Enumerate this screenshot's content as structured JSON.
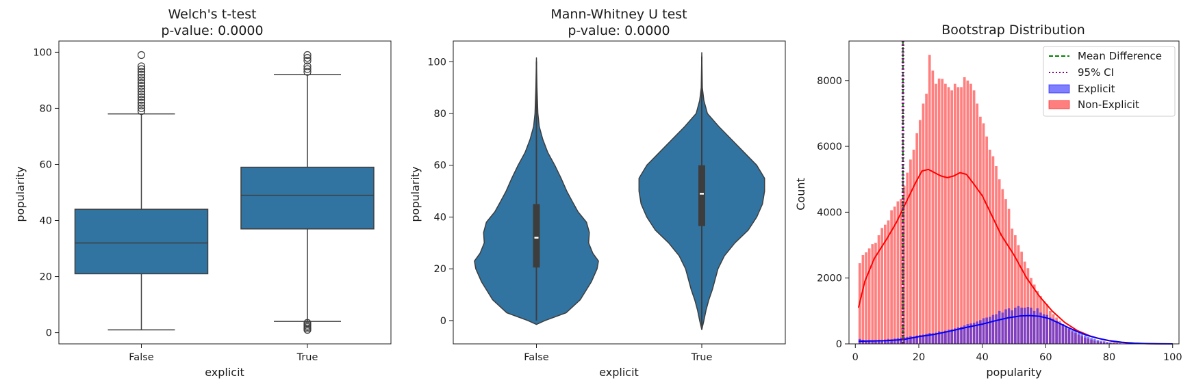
{
  "colors": {
    "box": "#3274a1",
    "edge": "#3d3d3d",
    "explicit": "#0000ff",
    "non_explicit": "#ff0000",
    "mean_line": "#008000",
    "ci_line": "#800080"
  },
  "chart_data": [
    {
      "type": "box",
      "title_lines": [
        "Welch's t-test",
        "p-value: 0.0000"
      ],
      "xlabel": "explicit",
      "ylabel": "popularity",
      "categories": [
        "False",
        "True"
      ],
      "ylim": [
        -4,
        104
      ],
      "yticks": [
        0,
        20,
        40,
        60,
        80,
        100
      ],
      "boxes": [
        {
          "category": "False",
          "min": 1,
          "q1": 21,
          "median": 32,
          "q3": 44,
          "max": 78,
          "outliers": [
            79,
            80,
            81,
            82,
            83,
            84,
            85,
            86,
            87,
            88,
            89,
            90,
            91,
            92,
            93,
            94,
            95,
            99
          ]
        },
        {
          "category": "True",
          "min": 4,
          "q1": 37,
          "median": 49,
          "q3": 59,
          "max": 92,
          "outliers": [
            1,
            1.5,
            2,
            2.5,
            3,
            3.5,
            93,
            94,
            95,
            97,
            98,
            99
          ]
        }
      ]
    },
    {
      "type": "violin",
      "title_lines": [
        "Mann-Whitney U test",
        "p-value: 0.0000"
      ],
      "xlabel": "explicit",
      "ylabel": "popularity",
      "categories": [
        "False",
        "True"
      ],
      "ylim": [
        -9,
        108
      ],
      "yticks": [
        0,
        20,
        40,
        60,
        80,
        100
      ],
      "violins": [
        {
          "category": "False",
          "ymin": -1.5,
          "ymax": 101.5,
          "q1": 20.5,
          "median": 32,
          "q3": 45,
          "profile": [
            [
              -1.5,
              0
            ],
            [
              0,
              0.12
            ],
            [
              3,
              0.42
            ],
            [
              8,
              0.62
            ],
            [
              15,
              0.78
            ],
            [
              20,
              0.86
            ],
            [
              23,
              0.88
            ],
            [
              26,
              0.8
            ],
            [
              30,
              0.74
            ],
            [
              34,
              0.75
            ],
            [
              38,
              0.71
            ],
            [
              42,
              0.59
            ],
            [
              46,
              0.51
            ],
            [
              50,
              0.43
            ],
            [
              55,
              0.35
            ],
            [
              60,
              0.26
            ],
            [
              65,
              0.16
            ],
            [
              70,
              0.09
            ],
            [
              75,
              0.04
            ],
            [
              80,
              0.02
            ],
            [
              90,
              0.008
            ],
            [
              101.5,
              0
            ]
          ]
        },
        {
          "category": "True",
          "ymin": -3.5,
          "ymax": 103.5,
          "q1": 36.5,
          "median": 49,
          "q3": 60,
          "profile": [
            [
              -3.5,
              0
            ],
            [
              0,
              0.03
            ],
            [
              4,
              0.06
            ],
            [
              8,
              0.1
            ],
            [
              12,
              0.15
            ],
            [
              16,
              0.19
            ],
            [
              20,
              0.23
            ],
            [
              25,
              0.32
            ],
            [
              30,
              0.47
            ],
            [
              35,
              0.66
            ],
            [
              40,
              0.78
            ],
            [
              45,
              0.86
            ],
            [
              50,
              0.89
            ],
            [
              55,
              0.89
            ],
            [
              60,
              0.78
            ],
            [
              65,
              0.6
            ],
            [
              70,
              0.42
            ],
            [
              75,
              0.24
            ],
            [
              80,
              0.08
            ],
            [
              85,
              0.03
            ],
            [
              90,
              0.008
            ],
            [
              103.5,
              0
            ]
          ]
        }
      ]
    },
    {
      "type": "histogram",
      "title": "Bootstrap Distribution",
      "xlabel": "popularity",
      "ylabel": "Count",
      "xlim": [
        -2,
        102
      ],
      "ylim": [
        0,
        9200
      ],
      "xticks": [
        0,
        20,
        40,
        60,
        80,
        100
      ],
      "yticks": [
        0,
        2000,
        4000,
        6000,
        8000
      ],
      "legend_position": "upper right",
      "vlines": [
        {
          "name": "Mean Difference",
          "x": 15.0,
          "style": "dashed"
        },
        {
          "name": "95% CI",
          "x": 14.8,
          "style": "dotted"
        },
        {
          "name": "95% CI",
          "x": 15.2,
          "style": "dotted"
        }
      ],
      "legend": [
        {
          "label": "Mean Difference",
          "kind": "dashed-line"
        },
        {
          "label": "95% CI",
          "kind": "dotted-line"
        },
        {
          "label": "Explicit",
          "kind": "patch-blue"
        },
        {
          "label": "Non-Explicit",
          "kind": "patch-red"
        }
      ],
      "bin_width": 1,
      "series": [
        {
          "name": "Non-Explicit",
          "bins_start": 1,
          "values": [
            2450,
            2700,
            2780,
            2900,
            3030,
            3070,
            3300,
            3520,
            3620,
            3750,
            4060,
            4170,
            4330,
            4400,
            4800,
            5200,
            5600,
            5900,
            6400,
            6800,
            7300,
            7600,
            8780,
            8300,
            7900,
            8060,
            8050,
            7900,
            7800,
            7700,
            7900,
            7800,
            7800,
            8100,
            8000,
            7900,
            7700,
            7300,
            6900,
            6700,
            6300,
            5900,
            5700,
            5400,
            5000,
            4700,
            4400,
            4100,
            3500,
            3300,
            3000,
            2800,
            2500,
            2300,
            2000,
            1800,
            1600,
            1450,
            1300,
            1200,
            1000,
            900,
            800,
            700,
            600,
            500,
            450,
            380,
            330,
            280,
            230,
            190,
            160,
            130,
            100,
            80,
            60,
            45,
            35,
            25,
            18,
            12,
            8,
            5,
            3,
            2,
            1,
            1,
            1,
            1,
            1,
            1,
            1,
            1,
            1,
            1,
            1,
            1,
            1
          ]
        },
        {
          "name": "Explicit",
          "bins_start": 1,
          "values": [
            150,
            120,
            100,
            110,
            90,
            100,
            120,
            110,
            130,
            150,
            140,
            160,
            170,
            190,
            200,
            210,
            230,
            220,
            250,
            270,
            280,
            300,
            330,
            320,
            340,
            380,
            360,
            400,
            430,
            440,
            470,
            500,
            520,
            560,
            600,
            620,
            640,
            680,
            720,
            780,
            800,
            820,
            880,
            900,
            1000,
            950,
            1050,
            1080,
            1020,
            1100,
            1150,
            1100,
            1100,
            1120,
            1100,
            1000,
            1080,
            950,
            900,
            880,
            800,
            760,
            700,
            640,
            600,
            520,
            480,
            420,
            380,
            330,
            290,
            250,
            210,
            180,
            150,
            120,
            95,
            80,
            60,
            45,
            35,
            25,
            18,
            12,
            8,
            5,
            3,
            2,
            1,
            1,
            1,
            1,
            1,
            1,
            1,
            1,
            1,
            1,
            1
          ]
        },
        {
          "name": "Non-Explicit KDE",
          "points": [
            [
              1,
              1100
            ],
            [
              3,
              1900
            ],
            [
              6,
              2600
            ],
            [
              10,
              3200
            ],
            [
              13,
              3700
            ],
            [
              16,
              4300
            ],
            [
              19,
              4900
            ],
            [
              21,
              5250
            ],
            [
              23,
              5300
            ],
            [
              25,
              5200
            ],
            [
              27,
              5100
            ],
            [
              29,
              5050
            ],
            [
              31,
              5100
            ],
            [
              33,
              5200
            ],
            [
              35,
              5150
            ],
            [
              37,
              4900
            ],
            [
              40,
              4500
            ],
            [
              43,
              3900
            ],
            [
              46,
              3300
            ],
            [
              50,
              2700
            ],
            [
              54,
              2000
            ],
            [
              58,
              1450
            ],
            [
              62,
              1000
            ],
            [
              66,
              650
            ],
            [
              70,
              400
            ],
            [
              74,
              240
            ],
            [
              78,
              130
            ],
            [
              82,
              60
            ],
            [
              86,
              25
            ],
            [
              90,
              10
            ],
            [
              95,
              3
            ],
            [
              100,
              0
            ]
          ]
        },
        {
          "name": "Explicit KDE",
          "points": [
            [
              1,
              80
            ],
            [
              5,
              90
            ],
            [
              10,
              100
            ],
            [
              15,
              130
            ],
            [
              20,
              220
            ],
            [
              25,
              290
            ],
            [
              30,
              390
            ],
            [
              35,
              500
            ],
            [
              40,
              600
            ],
            [
              44,
              700
            ],
            [
              48,
              790
            ],
            [
              52,
              850
            ],
            [
              55,
              860
            ],
            [
              58,
              840
            ],
            [
              61,
              770
            ],
            [
              64,
              640
            ],
            [
              67,
              500
            ],
            [
              70,
              370
            ],
            [
              73,
              260
            ],
            [
              76,
              180
            ],
            [
              80,
              100
            ],
            [
              84,
              50
            ],
            [
              88,
              20
            ],
            [
              92,
              8
            ],
            [
              96,
              3
            ],
            [
              100,
              0
            ]
          ]
        }
      ]
    }
  ]
}
